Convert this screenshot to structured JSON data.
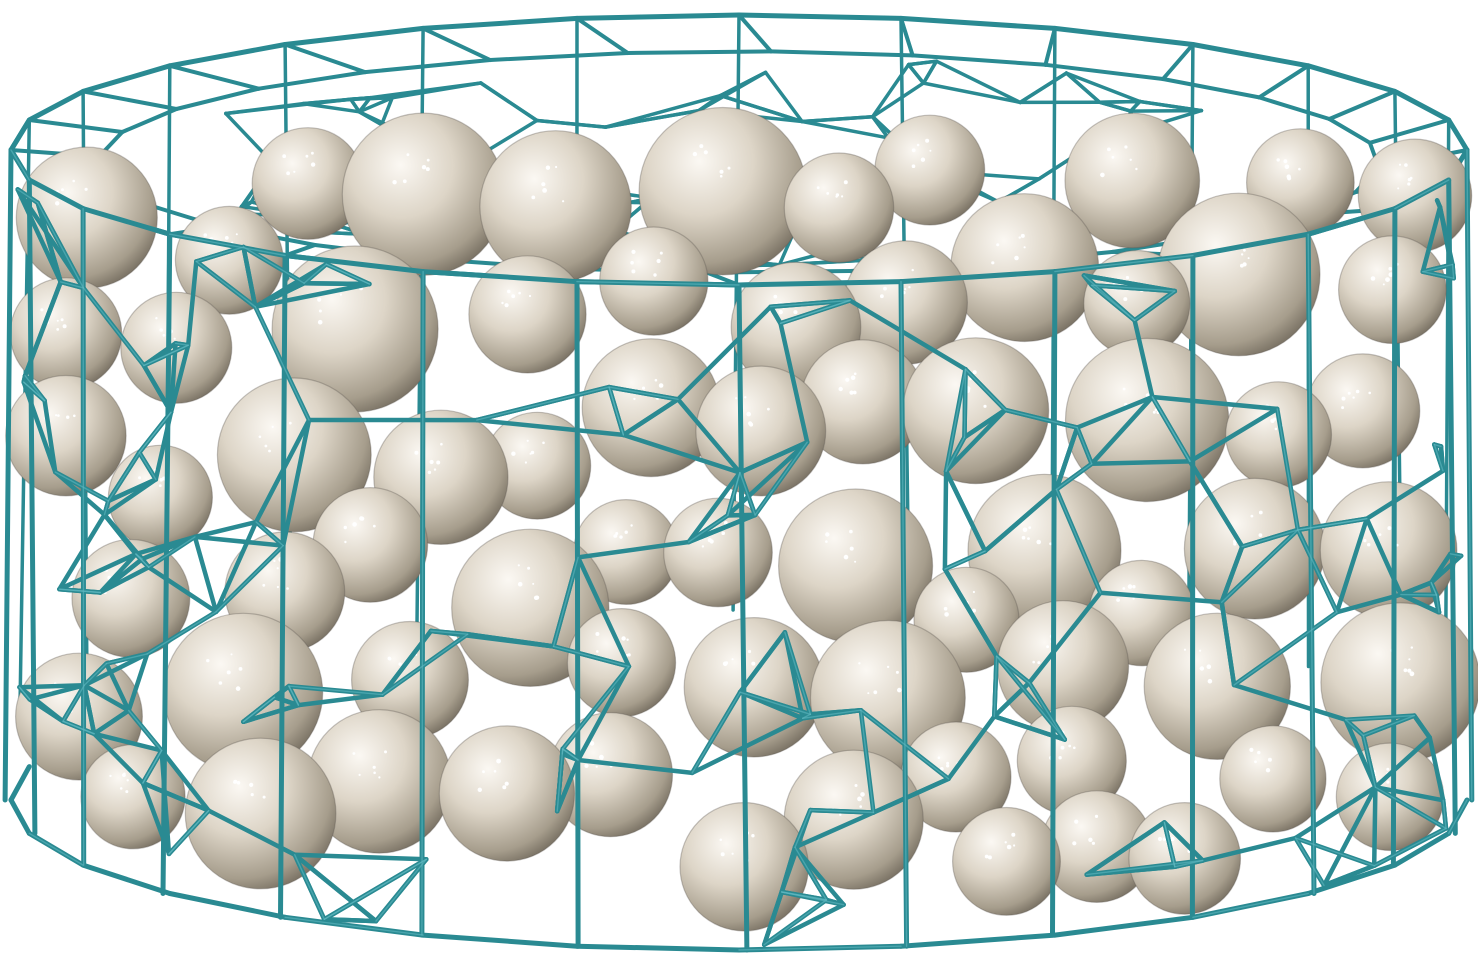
{
  "scene": {
    "subject": "voronoi-cell-packing",
    "colors": {
      "background": "#ffffff",
      "frame": "#2a8a92",
      "frame_highlight": "#5fb8bf",
      "sphere_light": "#f2ede4",
      "sphere_mid": "#cfc6b6",
      "sphere_dark": "#8e8576",
      "shadow": "#5e5a52"
    }
  }
}
